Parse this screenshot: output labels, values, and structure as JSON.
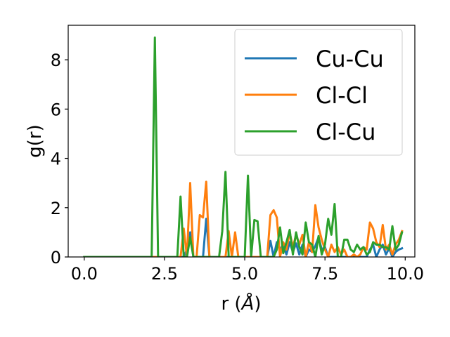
{
  "chart_data": {
    "type": "line",
    "title": "",
    "xlabel": "r (Å)",
    "xlabel_parts": {
      "prefix": "r (",
      "unit": "Å",
      "suffix": ")"
    },
    "ylabel": "g(r)",
    "xlim": [
      -0.5,
      10.3
    ],
    "ylim": [
      0,
      9.4
    ],
    "xticks": [
      0.0,
      2.5,
      5.0,
      7.5,
      10.0
    ],
    "xtick_labels": [
      "0.0",
      "2.5",
      "5.0",
      "7.5",
      "10.0"
    ],
    "yticks": [
      0,
      2,
      4,
      6,
      8
    ],
    "ytick_labels": [
      "0",
      "2",
      "4",
      "6",
      "8"
    ],
    "grid": false,
    "legend_position": "top-right",
    "x": [
      0.0,
      0.1,
      0.2,
      0.3,
      0.4,
      0.5,
      0.6,
      0.7,
      0.8,
      0.9,
      1.0,
      1.1,
      1.2,
      1.3,
      1.4,
      1.5,
      1.6,
      1.7,
      1.8,
      1.9,
      2.0,
      2.1,
      2.2,
      2.3,
      2.4,
      2.5,
      2.6,
      2.7,
      2.8,
      2.9,
      3.0,
      3.1,
      3.2,
      3.3,
      3.4,
      3.5,
      3.6,
      3.7,
      3.8,
      3.9,
      4.0,
      4.1,
      4.2,
      4.3,
      4.4,
      4.5,
      4.6,
      4.7,
      4.8,
      4.9,
      5.0,
      5.1,
      5.2,
      5.3,
      5.4,
      5.5,
      5.6,
      5.7,
      5.8,
      5.9,
      6.0,
      6.1,
      6.2,
      6.3,
      6.4,
      6.5,
      6.6,
      6.7,
      6.8,
      6.9,
      7.0,
      7.1,
      7.2,
      7.3,
      7.4,
      7.5,
      7.6,
      7.7,
      7.8,
      7.9,
      8.0,
      8.1,
      8.2,
      8.3,
      8.4,
      8.5,
      8.6,
      8.7,
      8.8,
      8.9,
      9.0,
      9.1,
      9.2,
      9.3,
      9.4,
      9.5,
      9.6,
      9.7,
      9.8,
      9.9
    ],
    "series": [
      {
        "name": "Cu-Cu",
        "color": "#1f77b4",
        "values": [
          0,
          0,
          0,
          0,
          0,
          0,
          0,
          0,
          0,
          0,
          0,
          0,
          0,
          0,
          0,
          0,
          0,
          0,
          0,
          0,
          0,
          0,
          0,
          0,
          0,
          0,
          0,
          0,
          0,
          0,
          0,
          0,
          0.3,
          1.0,
          0,
          0,
          0,
          0,
          1.55,
          0,
          0,
          0,
          0,
          0,
          0,
          0,
          0,
          0,
          0,
          0,
          0,
          0,
          0,
          0,
          0,
          0,
          0,
          0,
          0.65,
          0,
          0.6,
          0.3,
          0.5,
          0.1,
          0.6,
          0.2,
          0.55,
          0.1,
          0.5,
          0,
          0.3,
          0.2,
          0.45,
          0.8,
          0.3,
          0.4,
          0,
          0,
          0,
          0,
          0,
          0,
          0,
          0,
          0,
          0,
          0,
          0,
          0,
          0.3,
          0.5,
          0,
          0.3,
          0.5,
          0.1,
          0.35,
          0,
          0.2,
          0.3,
          0.35
        ]
      },
      {
        "name": "Cl-Cl",
        "color": "#ff7f0e",
        "values": [
          0,
          0,
          0,
          0,
          0,
          0,
          0,
          0,
          0,
          0,
          0,
          0,
          0,
          0,
          0,
          0,
          0,
          0,
          0,
          0,
          0,
          0,
          0,
          0,
          0,
          0,
          0,
          0,
          0,
          0,
          0,
          1.15,
          0,
          3.0,
          0,
          0,
          1.7,
          1.6,
          3.05,
          0,
          0,
          0,
          0,
          0,
          0,
          1.05,
          0,
          1.0,
          0,
          0,
          0,
          0,
          0,
          0,
          0,
          0,
          0,
          0,
          1.7,
          1.9,
          1.6,
          0,
          0.6,
          0.3,
          1.0,
          0.4,
          0.9,
          0.5,
          0.9,
          0,
          0.6,
          0.2,
          2.1,
          1.2,
          0.7,
          0.3,
          0,
          0.5,
          0.2,
          0.4,
          0.1,
          0.3,
          0,
          0,
          0.1,
          0,
          0.1,
          0.4,
          0.3,
          1.4,
          1.15,
          0.6,
          0.4,
          1.3,
          0.3,
          0.5,
          0.1,
          0.5,
          0.7,
          1.05
        ]
      },
      {
        "name": "Cl-Cu",
        "color": "#2ca02c",
        "values": [
          0,
          0,
          0,
          0,
          0,
          0,
          0,
          0,
          0,
          0,
          0,
          0,
          0,
          0,
          0,
          0,
          0,
          0,
          0,
          0,
          0,
          0,
          8.9,
          0,
          0,
          0,
          0,
          0,
          0,
          0,
          2.45,
          0,
          0,
          0.8,
          0,
          0,
          0,
          0,
          0,
          0,
          0,
          0,
          0,
          1.05,
          3.45,
          0,
          0,
          0,
          0,
          0,
          0,
          3.3,
          0,
          1.5,
          1.45,
          0,
          0,
          0,
          0,
          0,
          0.3,
          1.2,
          0.15,
          0.6,
          1.1,
          0.1,
          1.0,
          0.4,
          0.1,
          1.4,
          0.6,
          0.5,
          0,
          0.85,
          0.1,
          0.5,
          1.55,
          0.9,
          2.15,
          0,
          0,
          0.7,
          0.7,
          0.3,
          0.2,
          0.5,
          0.3,
          0.4,
          0.1,
          0.2,
          0.6,
          0.5,
          0.5,
          0.4,
          0.4,
          0.3,
          1.25,
          0.3,
          0.5,
          1.0
        ]
      }
    ]
  }
}
